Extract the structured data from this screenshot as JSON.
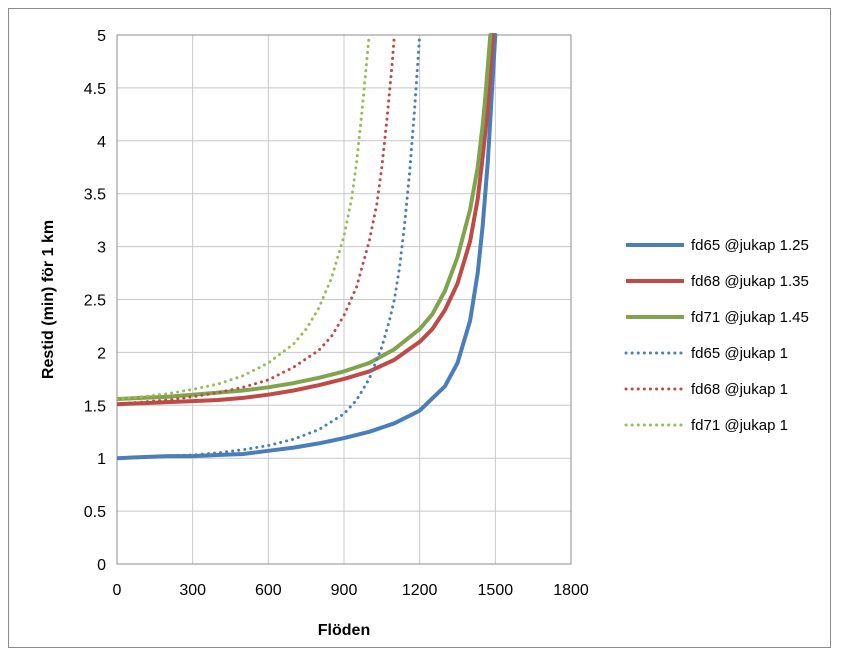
{
  "chart_data": {
    "type": "line",
    "title": "",
    "xlabel": "Flöden",
    "ylabel": "Restid (min) för 1 km",
    "xlim": [
      0,
      1800
    ],
    "ylim": [
      0,
      5
    ],
    "x_ticks": [
      "0",
      "300",
      "600",
      "900",
      "1200",
      "1500",
      "1800"
    ],
    "y_ticks": [
      "0",
      "0.5",
      "1",
      "1.5",
      "2",
      "2.5",
      "3",
      "3.5",
      "4",
      "4.5",
      "5"
    ],
    "grid": true,
    "legend_position": "right",
    "series": [
      {
        "name": "fd65 @jukap 1.25",
        "color": "#4a7ebb",
        "style": "solid",
        "x": [
          0,
          100,
          200,
          300,
          400,
          500,
          600,
          700,
          800,
          900,
          1000,
          1100,
          1200,
          1300,
          1350,
          1400,
          1430,
          1450,
          1470,
          1480,
          1490,
          1500
        ],
        "y": [
          1.0,
          1.01,
          1.02,
          1.02,
          1.03,
          1.04,
          1.07,
          1.1,
          1.14,
          1.19,
          1.25,
          1.33,
          1.45,
          1.68,
          1.9,
          2.3,
          2.75,
          3.2,
          3.8,
          4.2,
          4.6,
          5.0
        ]
      },
      {
        "name": "fd68 @jukap 1.35",
        "color": "#be4b48",
        "style": "solid",
        "x": [
          0,
          100,
          200,
          300,
          400,
          500,
          600,
          700,
          800,
          900,
          1000,
          1100,
          1200,
          1250,
          1300,
          1350,
          1400,
          1430,
          1450,
          1470,
          1480,
          1490
        ],
        "y": [
          1.51,
          1.52,
          1.53,
          1.54,
          1.55,
          1.57,
          1.6,
          1.64,
          1.69,
          1.75,
          1.82,
          1.93,
          2.1,
          2.22,
          2.4,
          2.65,
          3.05,
          3.45,
          3.85,
          4.3,
          4.65,
          5.0
        ]
      },
      {
        "name": "fd71 @jukap 1.45",
        "color": "#7fa44d",
        "style": "solid",
        "x": [
          0,
          100,
          200,
          300,
          400,
          500,
          600,
          700,
          800,
          900,
          1000,
          1100,
          1200,
          1250,
          1300,
          1350,
          1400,
          1430,
          1450,
          1460,
          1470,
          1480
        ],
        "y": [
          1.56,
          1.57,
          1.58,
          1.6,
          1.62,
          1.64,
          1.67,
          1.71,
          1.76,
          1.82,
          1.9,
          2.03,
          2.22,
          2.36,
          2.58,
          2.9,
          3.35,
          3.75,
          4.15,
          4.4,
          4.7,
          5.0
        ]
      },
      {
        "name": "fd65 @jukap 1",
        "color": "#4a7ebb",
        "style": "dotted",
        "x": [
          0,
          100,
          200,
          300,
          400,
          500,
          600,
          700,
          800,
          900,
          950,
          1000,
          1050,
          1080,
          1100,
          1120,
          1140,
          1160,
          1180,
          1200
        ],
        "y": [
          1.0,
          1.01,
          1.02,
          1.03,
          1.05,
          1.08,
          1.12,
          1.18,
          1.27,
          1.42,
          1.55,
          1.75,
          2.05,
          2.3,
          2.5,
          2.8,
          3.2,
          3.7,
          4.3,
          5.0
        ]
      },
      {
        "name": "fd68 @jukap 1",
        "color": "#be4b48",
        "style": "dotted",
        "x": [
          0,
          100,
          200,
          300,
          400,
          500,
          600,
          700,
          800,
          850,
          900,
          950,
          1000,
          1030,
          1050,
          1070,
          1090,
          1100
        ],
        "y": [
          1.51,
          1.53,
          1.55,
          1.58,
          1.62,
          1.67,
          1.74,
          1.86,
          2.02,
          2.15,
          2.35,
          2.62,
          3.05,
          3.4,
          3.75,
          4.2,
          4.7,
          5.0
        ]
      },
      {
        "name": "fd71 @jukap 1",
        "color": "#9bbb59",
        "style": "dotted",
        "x": [
          0,
          100,
          200,
          300,
          400,
          500,
          600,
          700,
          750,
          800,
          850,
          900,
          930,
          950,
          970,
          990,
          1000
        ],
        "y": [
          1.56,
          1.58,
          1.61,
          1.65,
          1.7,
          1.78,
          1.9,
          2.08,
          2.22,
          2.42,
          2.7,
          3.1,
          3.45,
          3.8,
          4.25,
          4.75,
          5.0
        ]
      }
    ]
  }
}
